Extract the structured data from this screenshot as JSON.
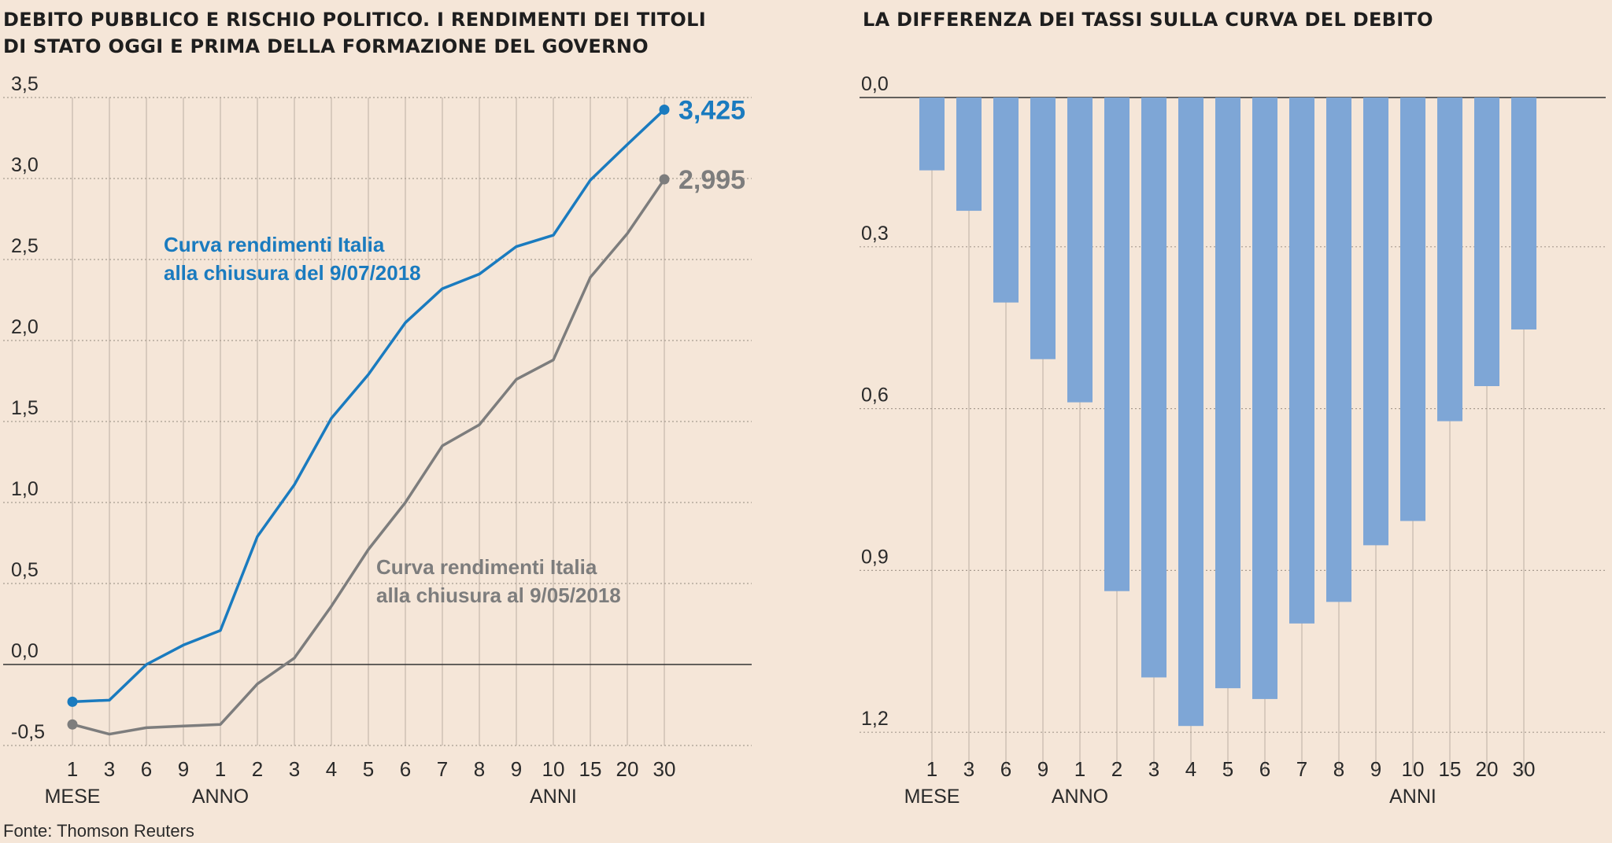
{
  "titles": {
    "left": [
      "DEBITO PUBBLICO E RISCHIO POLITICO. I RENDIMENTI DEI TITOLI",
      "DI STATO OGGI E PRIMA DELLA FORMAZIONE DEL GOVERNO"
    ],
    "right": "LA DIFFERENZA DEI TASSI SULLA CURVA DEL DEBITO"
  },
  "source": "Fonte: Thomson Reuters",
  "colors": {
    "background": "#f5e6d8",
    "blue_line": "#1a7bbf",
    "gray_line": "#7d7d7d",
    "bar": "#7ea6d6",
    "grid": "#a89c90",
    "axis_text": "#2a2a2a"
  },
  "chart_data": [
    {
      "type": "line",
      "title": "DEBITO PUBBLICO E RISCHIO POLITICO. I RENDIMENTI DEI TITOLI DI STATO OGGI E PRIMA DELLA FORMAZIONE DEL GOVERNO",
      "categories": [
        "1",
        "3",
        "6",
        "9",
        "1",
        "2",
        "3",
        "4",
        "5",
        "6",
        "7",
        "8",
        "9",
        "10",
        "15",
        "20",
        "30"
      ],
      "group_labels": [
        {
          "label": "MESE",
          "index": 0
        },
        {
          "label": "ANNO",
          "index": 4
        },
        {
          "label": "ANNI",
          "index": 13
        }
      ],
      "yticks": [
        "3,5",
        "3,0",
        "2,5",
        "2,0",
        "1,5",
        "1,0",
        "0,5",
        "0,0",
        "-0,5"
      ],
      "ytick_values": [
        3.5,
        3.0,
        2.5,
        2.0,
        1.5,
        1.0,
        0.5,
        0.0,
        -0.5
      ],
      "ylim": [
        -0.5,
        3.5
      ],
      "grid": true,
      "series": [
        {
          "name": "Curva rendimenti Italia alla chiusura del 9/07/2018",
          "label_lines": [
            "Curva rendimenti Italia",
            "alla chiusura del 9/07/2018"
          ],
          "color": "#1a7bbf",
          "values": [
            -0.23,
            -0.22,
            0.0,
            0.12,
            0.21,
            0.79,
            1.11,
            1.52,
            1.79,
            2.11,
            2.32,
            2.41,
            2.58,
            2.65,
            2.99,
            3.21,
            3.425
          ],
          "end_label": "3,425"
        },
        {
          "name": "Curva rendimenti Italia alla chiusura al 9/05/2018",
          "label_lines": [
            "Curva rendimenti Italia",
            "alla chiusura al 9/05/2018"
          ],
          "color": "#7d7d7d",
          "values": [
            -0.37,
            -0.43,
            -0.39,
            -0.38,
            -0.37,
            -0.12,
            0.04,
            0.36,
            0.71,
            1.0,
            1.35,
            1.48,
            1.76,
            1.88,
            2.39,
            2.66,
            2.995
          ],
          "end_label": "2,995"
        }
      ]
    },
    {
      "type": "bar",
      "title": "LA DIFFERENZA DEI TASSI SULLA CURVA DEL DEBITO",
      "categories": [
        "1",
        "3",
        "6",
        "9",
        "1",
        "2",
        "3",
        "4",
        "5",
        "6",
        "7",
        "8",
        "9",
        "10",
        "15",
        "20",
        "30"
      ],
      "group_labels": [
        {
          "label": "MESE",
          "index": 0
        },
        {
          "label": "ANNO",
          "index": 4
        },
        {
          "label": "ANNI",
          "index": 13
        }
      ],
      "yticks": [
        "0,0",
        "0,3",
        "0,6",
        "0,9",
        "1,2"
      ],
      "ytick_values": [
        0.0,
        0.3,
        0.6,
        0.9,
        1.2
      ],
      "ylim": [
        0,
        1.2
      ],
      "y_inverted": true,
      "grid": true,
      "values": [
        0.135,
        0.21,
        0.38,
        0.485,
        0.565,
        0.915,
        1.075,
        1.165,
        1.095,
        1.115,
        0.975,
        0.935,
        0.83,
        0.785,
        0.6,
        0.535,
        0.43
      ]
    }
  ]
}
